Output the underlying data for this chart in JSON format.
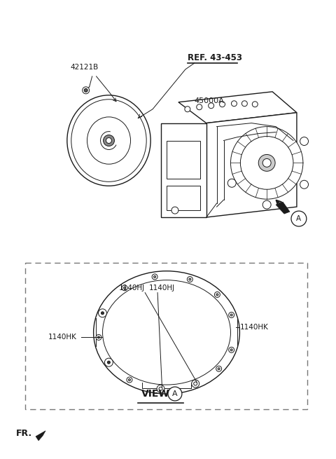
{
  "bg_color": "#ffffff",
  "line_color": "#1a1a1a",
  "fig_width": 4.8,
  "fig_height": 6.55,
  "dpi": 100,
  "label_42121B": "42121B",
  "label_ref": "REF. 43-453",
  "label_45000A": "45000A",
  "label_1140HJ": "1140HJ",
  "label_1140HK": "1140HK",
  "label_view": "VIEW",
  "label_A": "A",
  "label_FR": "FR."
}
